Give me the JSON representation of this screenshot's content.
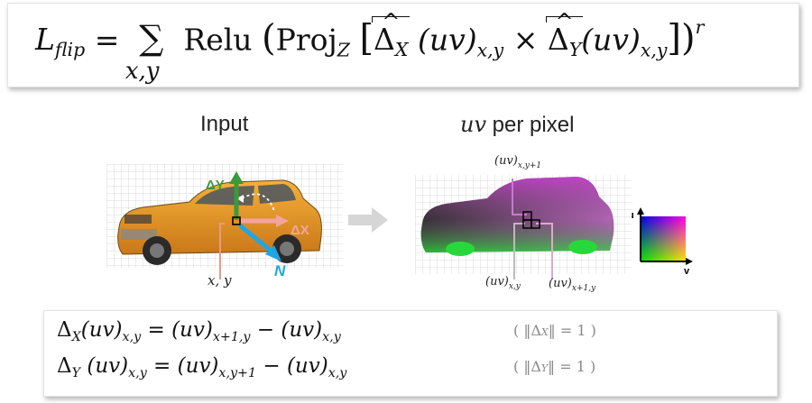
{
  "formula": {
    "lhs": "L",
    "lhs_sub": "flip",
    "equals": "=",
    "sum_symbol": "∑",
    "sum_index": "x,y",
    "relu": "Relu",
    "proj": "Proj",
    "proj_sub": "Z",
    "delta": "Δ",
    "delta_x_sub": "X",
    "delta_y_sub": "Y",
    "uv": "(uv)",
    "uv_sub": "x,y",
    "times": "×",
    "exponent": "r"
  },
  "captions": {
    "input": "Input",
    "uv_var": "uv",
    "uv_rest": " per pixel"
  },
  "car_labels": {
    "delta_y": "ΔY",
    "delta_x": "ΔX",
    "normal": "N",
    "xy": "x, y"
  },
  "uv_labels": {
    "top": "(uv)",
    "top_sub": "x,y+1",
    "bottom_left": "(uv)",
    "bottom_left_sub": "x,y",
    "bottom_right": "(uv)",
    "bottom_right_sub": "x+1,y",
    "axis_u": "u",
    "axis_v": "v"
  },
  "definitions": {
    "line1_lhs_delta": "Δ",
    "line1_lhs_sub": "X",
    "line1_uv": "(uv)",
    "line1_uv_sub": "x,y",
    "line1_eq": " = ",
    "line1_term1": "(uv)",
    "line1_term1_sub": "x+1,y",
    "line1_minus": " − ",
    "line1_term2": "(uv)",
    "line1_term2_sub": "x,y",
    "line1_note": "( ‖Δ",
    "line1_note_sub": "X",
    "line1_note_end": "‖ = 1 )",
    "line2_lhs_delta": "Δ",
    "line2_lhs_sub": "Y",
    "line2_uv": " (uv)",
    "line2_uv_sub": "x,y",
    "line2_eq": " = ",
    "line2_term1": "(uv)",
    "line2_term1_sub": "x,y+1",
    "line2_minus": " − ",
    "line2_term2": "(uv)",
    "line2_term2_sub": "x,y",
    "line2_note": "( ‖Δ",
    "line2_note_sub": "Y",
    "line2_note_end": "‖ = 1 )"
  },
  "colors": {
    "delta_y": "#3a9a3a",
    "delta_x": "#f4a3a0",
    "normal": "#1ea6e6",
    "uv_magenta": "#b43ec2",
    "uv_green": "#2ecf3a",
    "car_orange": "#e89a2a"
  }
}
